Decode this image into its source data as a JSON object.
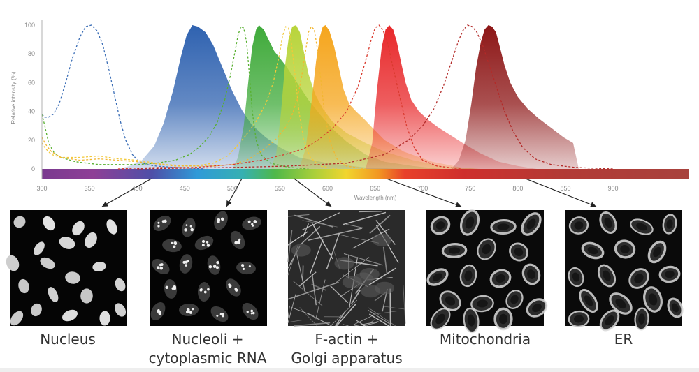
{
  "chart_data": {
    "type": "area",
    "xlabel": "Wavelength (nm)",
    "ylabel": "Relative intensity (%)",
    "xlim": [
      300,
      980
    ],
    "ylim": [
      0,
      100
    ],
    "x_ticks": [
      300,
      350,
      400,
      450,
      500,
      550,
      600,
      650,
      700,
      750,
      800,
      850,
      900
    ],
    "y_ticks": [
      0,
      20,
      40,
      60,
      80,
      100
    ],
    "grid": false,
    "legend": "none",
    "spectrum_band": true,
    "series": [
      {
        "kind": "excitation",
        "color": "#3a6db6",
        "points": [
          [
            300,
            38
          ],
          [
            303,
            36
          ],
          [
            307,
            36
          ],
          [
            312,
            38
          ],
          [
            318,
            45
          ],
          [
            325,
            60
          ],
          [
            332,
            77
          ],
          [
            340,
            92
          ],
          [
            346,
            99
          ],
          [
            352,
            100
          ],
          [
            358,
            96
          ],
          [
            364,
            86
          ],
          [
            370,
            70
          ],
          [
            376,
            52
          ],
          [
            382,
            34
          ],
          [
            388,
            20
          ],
          [
            395,
            10
          ],
          [
            402,
            5
          ],
          [
            410,
            3
          ],
          [
            420,
            2
          ],
          [
            440,
            1
          ],
          [
            470,
            0
          ]
        ]
      },
      {
        "kind": "emission",
        "color": "#2f62b0",
        "points": [
          [
            380,
            0
          ],
          [
            392,
            2
          ],
          [
            405,
            6
          ],
          [
            418,
            16
          ],
          [
            428,
            32
          ],
          [
            438,
            55
          ],
          [
            446,
            78
          ],
          [
            452,
            93
          ],
          [
            458,
            100
          ],
          [
            464,
            99
          ],
          [
            472,
            95
          ],
          [
            480,
            86
          ],
          [
            490,
            70
          ],
          [
            500,
            54
          ],
          [
            510,
            41
          ],
          [
            520,
            31
          ],
          [
            535,
            22
          ],
          [
            550,
            15
          ],
          [
            570,
            8
          ],
          [
            600,
            4
          ],
          [
            640,
            1
          ],
          [
            680,
            0
          ]
        ]
      },
      {
        "kind": "excitation",
        "color": "#58b030",
        "points": [
          [
            300,
            38
          ],
          [
            303,
            30
          ],
          [
            307,
            18
          ],
          [
            313,
            11
          ],
          [
            320,
            8
          ],
          [
            335,
            5
          ],
          [
            360,
            3
          ],
          [
            400,
            3
          ],
          [
            420,
            4
          ],
          [
            440,
            6
          ],
          [
            455,
            10
          ],
          [
            465,
            15
          ],
          [
            475,
            22
          ],
          [
            484,
            32
          ],
          [
            492,
            48
          ],
          [
            498,
            65
          ],
          [
            503,
            82
          ],
          [
            506,
            93
          ],
          [
            509,
            99
          ],
          [
            512,
            98
          ],
          [
            515,
            88
          ],
          [
            518,
            65
          ],
          [
            521,
            40
          ],
          [
            525,
            20
          ],
          [
            530,
            10
          ],
          [
            540,
            4
          ],
          [
            560,
            1
          ],
          [
            580,
            0
          ]
        ]
      },
      {
        "kind": "emission",
        "color": "#3faa3a",
        "points": [
          [
            500,
            0
          ],
          [
            506,
            8
          ],
          [
            512,
            30
          ],
          [
            517,
            62
          ],
          [
            521,
            85
          ],
          [
            525,
            97
          ],
          [
            528,
            100
          ],
          [
            533,
            97
          ],
          [
            538,
            90
          ],
          [
            544,
            82
          ],
          [
            550,
            77
          ],
          [
            556,
            72
          ],
          [
            562,
            66
          ],
          [
            570,
            58
          ],
          [
            580,
            48
          ],
          [
            592,
            38
          ],
          [
            605,
            28
          ],
          [
            620,
            19
          ],
          [
            640,
            10
          ],
          [
            660,
            5
          ],
          [
            690,
            2
          ],
          [
            720,
            0
          ]
        ]
      },
      {
        "kind": "excitation",
        "color": "#f2c93a",
        "points": [
          [
            300,
            18
          ],
          [
            304,
            14
          ],
          [
            310,
            10
          ],
          [
            320,
            8
          ],
          [
            340,
            8
          ],
          [
            360,
            9
          ],
          [
            370,
            8
          ],
          [
            380,
            7
          ],
          [
            400,
            6
          ],
          [
            430,
            3
          ],
          [
            460,
            2
          ],
          [
            480,
            4
          ],
          [
            495,
            9
          ],
          [
            505,
            16
          ],
          [
            515,
            24
          ],
          [
            525,
            33
          ],
          [
            535,
            45
          ],
          [
            543,
            60
          ],
          [
            549,
            78
          ],
          [
            553,
            93
          ],
          [
            556,
            99
          ],
          [
            559,
            98
          ],
          [
            562,
            88
          ],
          [
            566,
            65
          ],
          [
            570,
            40
          ],
          [
            575,
            20
          ],
          [
            582,
            8
          ],
          [
            592,
            2
          ],
          [
            610,
            0
          ]
        ]
      },
      {
        "kind": "emission",
        "color": "#b8d43a",
        "points": [
          [
            540,
            0
          ],
          [
            546,
            10
          ],
          [
            551,
            38
          ],
          [
            555,
            70
          ],
          [
            559,
            90
          ],
          [
            563,
            99
          ],
          [
            567,
            100
          ],
          [
            571,
            95
          ],
          [
            575,
            82
          ],
          [
            580,
            66
          ],
          [
            587,
            52
          ],
          [
            595,
            42
          ],
          [
            605,
            33
          ],
          [
            620,
            25
          ],
          [
            640,
            18
          ],
          [
            660,
            12
          ],
          [
            690,
            6
          ],
          [
            720,
            2
          ],
          [
            760,
            0
          ]
        ]
      },
      {
        "kind": "excitation",
        "color": "#f2b630",
        "points": [
          [
            300,
            22
          ],
          [
            305,
            16
          ],
          [
            310,
            12
          ],
          [
            320,
            8
          ],
          [
            340,
            6
          ],
          [
            360,
            7
          ],
          [
            380,
            6
          ],
          [
            400,
            5
          ],
          [
            440,
            2
          ],
          [
            480,
            2
          ],
          [
            500,
            3
          ],
          [
            515,
            6
          ],
          [
            530,
            12
          ],
          [
            545,
            20
          ],
          [
            555,
            28
          ],
          [
            562,
            36
          ],
          [
            568,
            48
          ],
          [
            573,
            65
          ],
          [
            577,
            82
          ],
          [
            580,
            95
          ],
          [
            583,
            99
          ],
          [
            586,
            97
          ],
          [
            589,
            85
          ],
          [
            593,
            62
          ],
          [
            597,
            38
          ],
          [
            603,
            18
          ],
          [
            610,
            7
          ],
          [
            620,
            2
          ],
          [
            640,
            0
          ]
        ]
      },
      {
        "kind": "emission",
        "color": "#f5a51c",
        "points": [
          [
            570,
            0
          ],
          [
            577,
            14
          ],
          [
            583,
            45
          ],
          [
            588,
            75
          ],
          [
            592,
            92
          ],
          [
            595,
            99
          ],
          [
            598,
            100
          ],
          [
            602,
            96
          ],
          [
            607,
            85
          ],
          [
            612,
            70
          ],
          [
            617,
            55
          ],
          [
            623,
            45
          ],
          [
            630,
            40
          ],
          [
            638,
            35
          ],
          [
            648,
            28
          ],
          [
            660,
            20
          ],
          [
            680,
            12
          ],
          [
            710,
            5
          ],
          [
            740,
            1
          ],
          [
            760,
            0
          ]
        ]
      },
      {
        "kind": "excitation",
        "color": "#d93a2e",
        "points": [
          [
            380,
            0
          ],
          [
            420,
            1
          ],
          [
            460,
            1
          ],
          [
            500,
            3
          ],
          [
            530,
            6
          ],
          [
            555,
            10
          ],
          [
            575,
            14
          ],
          [
            590,
            20
          ],
          [
            605,
            28
          ],
          [
            620,
            40
          ],
          [
            632,
            57
          ],
          [
            640,
            75
          ],
          [
            646,
            90
          ],
          [
            650,
            98
          ],
          [
            654,
            100
          ],
          [
            658,
            97
          ],
          [
            663,
            88
          ],
          [
            669,
            70
          ],
          [
            676,
            50
          ],
          [
            683,
            30
          ],
          [
            691,
            15
          ],
          [
            700,
            6
          ],
          [
            715,
            2
          ],
          [
            740,
            0
          ]
        ]
      },
      {
        "kind": "emission",
        "color": "#e8282a",
        "points": [
          [
            640,
            0
          ],
          [
            647,
            18
          ],
          [
            652,
            55
          ],
          [
            657,
            85
          ],
          [
            661,
            97
          ],
          [
            665,
            100
          ],
          [
            669,
            97
          ],
          [
            673,
            88
          ],
          [
            677,
            75
          ],
          [
            682,
            60
          ],
          [
            688,
            48
          ],
          [
            696,
            40
          ],
          [
            706,
            34
          ],
          [
            716,
            29
          ],
          [
            728,
            24
          ],
          [
            742,
            18
          ],
          [
            760,
            11
          ],
          [
            780,
            5
          ],
          [
            800,
            2
          ],
          [
            820,
            0
          ]
        ]
      },
      {
        "kind": "excitation",
        "color": "#b32a28",
        "points": [
          [
            400,
            0
          ],
          [
            500,
            1
          ],
          [
            560,
            2
          ],
          [
            620,
            4
          ],
          [
            660,
            10
          ],
          [
            685,
            20
          ],
          [
            700,
            30
          ],
          [
            712,
            42
          ],
          [
            722,
            58
          ],
          [
            730,
            74
          ],
          [
            737,
            88
          ],
          [
            742,
            96
          ],
          [
            747,
            100
          ],
          [
            752,
            99
          ],
          [
            757,
            95
          ],
          [
            763,
            86
          ],
          [
            770,
            72
          ],
          [
            778,
            56
          ],
          [
            786,
            40
          ],
          [
            795,
            26
          ],
          [
            805,
            15
          ],
          [
            818,
            7
          ],
          [
            835,
            3
          ],
          [
            860,
            1
          ],
          [
            900,
            0
          ]
        ]
      },
      {
        "kind": "emission",
        "color": "#8d1616",
        "points": [
          [
            730,
            0
          ],
          [
            738,
            6
          ],
          [
            745,
            20
          ],
          [
            751,
            45
          ],
          [
            756,
            70
          ],
          [
            761,
            88
          ],
          [
            765,
            97
          ],
          [
            769,
            100
          ],
          [
            773,
            99
          ],
          [
            777,
            95
          ],
          [
            781,
            85
          ],
          [
            786,
            72
          ],
          [
            792,
            60
          ],
          [
            800,
            50
          ],
          [
            810,
            42
          ],
          [
            822,
            35
          ],
          [
            836,
            28
          ],
          [
            848,
            22
          ],
          [
            858,
            18
          ],
          [
            864,
            0
          ]
        ]
      }
    ],
    "panels": [
      {
        "label": "Nucleus",
        "wavelength_nm": 415
      },
      {
        "label": "Nucleoli +",
        "label_line2": "cytoplasmic RNA",
        "wavelength_nm": 510
      },
      {
        "label": "F-actin +",
        "label_line2": "Golgi apparatus",
        "wavelength_nm": 565
      },
      {
        "label": "Mitochondria",
        "wavelength_nm": 662
      },
      {
        "label": "ER",
        "wavelength_nm": 808
      }
    ]
  }
}
